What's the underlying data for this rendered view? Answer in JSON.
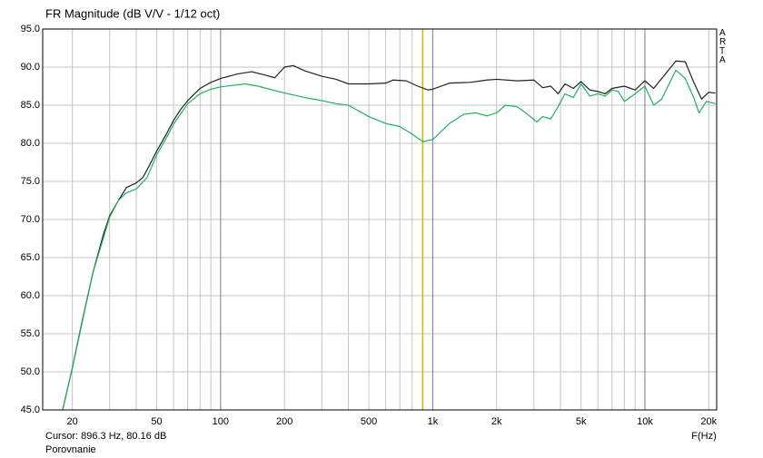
{
  "chart_data": {
    "type": "line",
    "title": "FR Magnitude (dB V/V - 1/12 oct)",
    "x_label": "F(Hz)",
    "side_label": "ARTA",
    "footer": "Porovnanie",
    "x_scale": "log",
    "xlim": [
      14.5,
      21800
    ],
    "ylim": [
      45,
      95
    ],
    "xticks": [
      20,
      50,
      100,
      200,
      500,
      {
        "value": 1000,
        "label": "1k"
      },
      {
        "value": 2000,
        "label": "2k"
      },
      {
        "value": 5000,
        "label": "5k"
      },
      {
        "value": 10000,
        "label": "10k"
      },
      {
        "value": 20000,
        "label": "20k"
      }
    ],
    "xminor_ticks": [
      30,
      40,
      60,
      70,
      80,
      90,
      300,
      400,
      600,
      700,
      800,
      900,
      3000,
      4000,
      6000,
      7000,
      8000,
      9000
    ],
    "yticks": [
      {
        "value": 95,
        "label": "95.0"
      },
      {
        "value": 90,
        "label": "90.0"
      },
      {
        "value": 85,
        "label": "85.0"
      },
      {
        "value": 80,
        "label": "80.0"
      },
      {
        "value": 75,
        "label": "75.0"
      },
      {
        "value": 70,
        "label": "70.0"
      },
      {
        "value": 65,
        "label": "65.0"
      },
      {
        "value": 60,
        "label": "60.0"
      },
      {
        "value": 55,
        "label": "55.0"
      },
      {
        "value": 50,
        "label": "50.0"
      },
      {
        "value": 45,
        "label": "45.0"
      }
    ],
    "grid": true,
    "cursor": {
      "x": 896.3,
      "label": "Cursor: 896.3 Hz, 80.16 dB",
      "color": "#c8c400"
    },
    "series": [
      {
        "color": "#222222",
        "x": [
          18,
          20,
          22,
          25,
          28,
          30,
          33,
          36,
          40,
          43,
          46,
          50,
          55,
          60,
          65,
          70,
          80,
          90,
          100,
          120,
          140,
          160,
          180,
          200,
          220,
          250,
          300,
          350,
          400,
          500,
          600,
          650,
          750,
          850,
          950,
          1000,
          1200,
          1500,
          1800,
          2000,
          2500,
          3000,
          3300,
          3600,
          3900,
          4200,
          4600,
          5000,
          5500,
          6000,
          6500,
          7000,
          8000,
          9000,
          10000,
          11000,
          12000,
          14000,
          15500,
          17000,
          18500,
          20000,
          21500
        ],
        "values": [
          45,
          50.5,
          56,
          63,
          68,
          70.5,
          72.5,
          74.2,
          74.8,
          75.5,
          77,
          79,
          81,
          83,
          84.5,
          85.6,
          87.2,
          88,
          88.5,
          89.1,
          89.4,
          89,
          88.6,
          90,
          90.2,
          89.5,
          88.8,
          88.4,
          87.8,
          87.8,
          87.9,
          88.3,
          88.2,
          87.5,
          87,
          87.1,
          87.9,
          88,
          88.3,
          88.4,
          88.2,
          88.3,
          87.3,
          87.5,
          86.5,
          87.8,
          87.2,
          88.1,
          87,
          86.8,
          86.5,
          87.2,
          87.5,
          87,
          88.2,
          87.2,
          88.5,
          90.8,
          90.7,
          88,
          85.8,
          86.7,
          86.6
        ]
      },
      {
        "color": "#1fb060",
        "x": [
          18,
          20,
          25,
          30,
          33,
          36,
          40,
          45,
          50,
          55,
          60,
          70,
          80,
          90,
          100,
          130,
          150,
          200,
          250,
          300,
          350,
          400,
          500,
          600,
          700,
          800,
          900,
          1000,
          1200,
          1400,
          1600,
          1800,
          2000,
          2200,
          2500,
          2800,
          3100,
          3300,
          3600,
          3900,
          4200,
          4600,
          5000,
          5500,
          6000,
          6500,
          7000,
          7500,
          8000,
          9000,
          10000,
          11000,
          12000,
          14000,
          15500,
          17000,
          18000,
          19500,
          21500
        ],
        "values": [
          45,
          50.5,
          63,
          70.3,
          72.5,
          73.5,
          74,
          75.5,
          78.5,
          80.5,
          82.5,
          85.2,
          86.5,
          87.1,
          87.4,
          87.8,
          87.5,
          86.6,
          86,
          85.6,
          85.2,
          85,
          83.5,
          82.6,
          82.2,
          81.2,
          80.2,
          80.5,
          82.6,
          83.8,
          84,
          83.6,
          84,
          85,
          84.8,
          83.8,
          82.8,
          83.5,
          83.2,
          84.8,
          86.5,
          86,
          87.8,
          86.2,
          86.5,
          86.2,
          87,
          86.8,
          85.5,
          86.5,
          87.5,
          85,
          85.8,
          89.6,
          88.5,
          86,
          84,
          85.5,
          85.2
        ]
      }
    ]
  }
}
